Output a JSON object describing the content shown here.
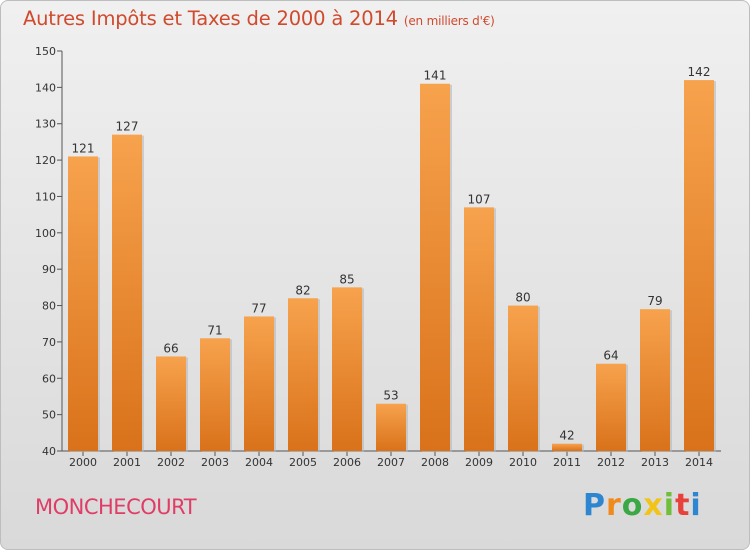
{
  "header": {
    "title": "Autres Impôts et Taxes de 2000 à 2014",
    "unit": "(en milliers d'€)"
  },
  "footer": {
    "place": "MONCHECOURT",
    "logo_text": "Proxiti"
  },
  "colors": {
    "title": "#d04a2d",
    "place": "#e03d66",
    "bar_light": "#f7a24d",
    "bar_dark": "#d9721a"
  },
  "chart_data": {
    "type": "bar",
    "categories": [
      "2000",
      "2001",
      "2002",
      "2003",
      "2004",
      "2005",
      "2006",
      "2007",
      "2008",
      "2009",
      "2010",
      "2011",
      "2012",
      "2013",
      "2014"
    ],
    "values": [
      121,
      127,
      66,
      71,
      77,
      82,
      85,
      53,
      141,
      107,
      80,
      42,
      64,
      79,
      142
    ],
    "title": "Autres Impôts et Taxes de 2000 à 2014",
    "ylim": [
      40,
      150
    ],
    "yticks": [
      40,
      50,
      60,
      70,
      80,
      90,
      100,
      110,
      120,
      130,
      140,
      150
    ],
    "grid": false,
    "data_labels": true
  }
}
